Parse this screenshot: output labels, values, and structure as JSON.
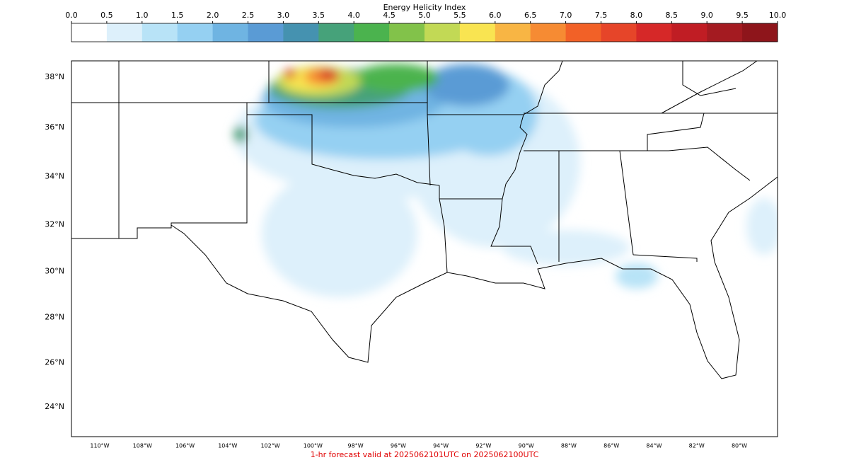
{
  "colorbar": {
    "title": "Energy Helicity Index",
    "ticks": [
      {
        "value": 0,
        "label": "0.0"
      },
      0.5,
      {
        "value": 1,
        "label": "1.0"
      },
      1.5,
      {
        "value": 2,
        "label": "2.0"
      },
      2.5,
      {
        "value": 3,
        "label": "3.0"
      },
      3.5,
      {
        "value": 4,
        "label": "4.0"
      },
      4.5,
      {
        "value": 5,
        "label": "5.0"
      },
      5.5,
      {
        "value": 6,
        "label": "6.0"
      },
      6.5,
      {
        "value": 7,
        "label": "7.0"
      },
      7.5,
      {
        "value": 8,
        "label": "8.0"
      },
      8.5,
      {
        "value": 9,
        "label": "9.0"
      },
      9.5,
      {
        "value": 10,
        "label": "10.0"
      }
    ],
    "colors": [
      "#ffffff",
      "#ddf0fb",
      "#b8e3f7",
      "#95d0f2",
      "#6fb4e2",
      "#5a9bd5",
      "#4592b0",
      "#46a27a",
      "#4bb34e",
      "#82c24a",
      "#c2d955",
      "#f9e451",
      "#f8b544",
      "#f68b33",
      "#f26127",
      "#e64529",
      "#d62828",
      "#c01d24",
      "#a41b21",
      "#8e151b"
    ]
  },
  "map": {
    "lat_ticks": [
      {
        "value": 38,
        "label": "38°N"
      },
      {
        "value": 36,
        "label": "36°N"
      },
      {
        "value": 34,
        "label": "34°N"
      },
      {
        "value": 32,
        "label": "32°N"
      },
      {
        "value": 30,
        "label": "30°N"
      },
      {
        "value": 28,
        "label": "28°N"
      },
      {
        "value": 26,
        "label": "26°N"
      },
      {
        "value": 24,
        "label": "24°N"
      }
    ],
    "lon_ticks": [
      {
        "value": -110,
        "label": "110°W"
      },
      {
        "value": -108,
        "label": "108°W"
      },
      {
        "value": -106,
        "label": "106°W"
      },
      {
        "value": -104,
        "label": "104°W"
      },
      {
        "value": -102,
        "label": "102°W"
      },
      {
        "value": -100,
        "label": "100°W"
      },
      {
        "value": -98,
        "label": "98°W"
      },
      {
        "value": -96,
        "label": "96°W"
      },
      {
        "value": -94,
        "label": "94°W"
      },
      {
        "value": -92,
        "label": "92°W"
      },
      {
        "value": -90,
        "label": "90°W"
      },
      {
        "value": -88,
        "label": "88°W"
      },
      {
        "value": -86,
        "label": "86°W"
      },
      {
        "value": -84,
        "label": "84°W"
      },
      {
        "value": -82,
        "label": "82°W"
      },
      {
        "value": -80,
        "label": "80°W"
      }
    ]
  },
  "footer": "1-hr forecast valid at 2025062101UTC on 2025062100UTC"
}
